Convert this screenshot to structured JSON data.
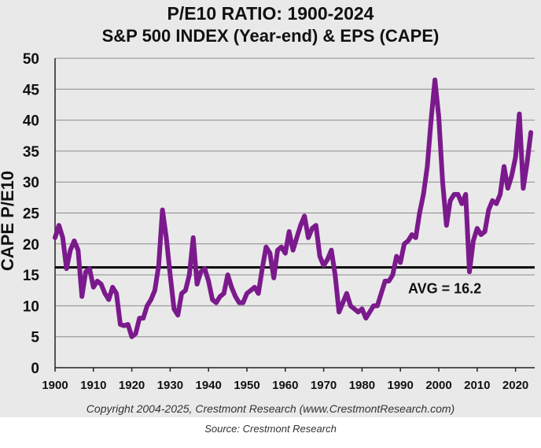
{
  "chart_data": {
    "type": "line",
    "title": "P/E10 RATIO: 1900-2024",
    "subtitle": "S&P 500 INDEX (Year-end) & EPS (CAPE)",
    "ylabel": "CAPE P/E10",
    "xlabel": "",
    "xlim": [
      1900,
      2025
    ],
    "ylim": [
      0,
      50
    ],
    "x_ticks": [
      "1900",
      "1910",
      "1920",
      "1930",
      "1940",
      "1950",
      "1960",
      "1970",
      "1980",
      "1990",
      "2000",
      "2010",
      "2020"
    ],
    "y_ticks": [
      "0",
      "5",
      "10",
      "15",
      "20",
      "25",
      "30",
      "35",
      "40",
      "45",
      "50"
    ],
    "grid": true,
    "series": [
      {
        "color": "#7b1a8c",
        "points": [
          [
            1900,
            21
          ],
          [
            1901,
            23
          ],
          [
            1902,
            21
          ],
          [
            1903,
            16
          ],
          [
            1904,
            19
          ],
          [
            1905,
            20.5
          ],
          [
            1906,
            19
          ],
          [
            1907,
            11.5
          ],
          [
            1908,
            15.5
          ],
          [
            1909,
            16
          ],
          [
            1910,
            13
          ],
          [
            1911,
            14
          ],
          [
            1912,
            13.5
          ],
          [
            1913,
            12
          ],
          [
            1914,
            11
          ],
          [
            1915,
            13
          ],
          [
            1916,
            12
          ],
          [
            1917,
            7
          ],
          [
            1918,
            6.8
          ],
          [
            1919,
            7
          ],
          [
            1920,
            5
          ],
          [
            1921,
            5.5
          ],
          [
            1922,
            8
          ],
          [
            1923,
            8
          ],
          [
            1924,
            10
          ],
          [
            1925,
            11
          ],
          [
            1926,
            12.5
          ],
          [
            1927,
            16.5
          ],
          [
            1928,
            25.5
          ],
          [
            1929,
            21
          ],
          [
            1930,
            15
          ],
          [
            1931,
            9.5
          ],
          [
            1932,
            8.5
          ],
          [
            1933,
            12
          ],
          [
            1934,
            12.5
          ],
          [
            1935,
            15
          ],
          [
            1936,
            21
          ],
          [
            1937,
            13.5
          ],
          [
            1938,
            15.5
          ],
          [
            1939,
            16
          ],
          [
            1940,
            14
          ],
          [
            1941,
            11
          ],
          [
            1942,
            10.5
          ],
          [
            1943,
            11.5
          ],
          [
            1944,
            12
          ],
          [
            1945,
            15
          ],
          [
            1946,
            13
          ],
          [
            1947,
            11.5
          ],
          [
            1948,
            10.5
          ],
          [
            1949,
            10.5
          ],
          [
            1950,
            12
          ],
          [
            1951,
            12.5
          ],
          [
            1952,
            13
          ],
          [
            1953,
            12
          ],
          [
            1954,
            16
          ],
          [
            1955,
            19.5
          ],
          [
            1956,
            18.5
          ],
          [
            1957,
            14.5
          ],
          [
            1958,
            19
          ],
          [
            1959,
            19.5
          ],
          [
            1960,
            18.5
          ],
          [
            1961,
            22
          ],
          [
            1962,
            19
          ],
          [
            1963,
            21
          ],
          [
            1964,
            23
          ],
          [
            1965,
            24.5
          ],
          [
            1966,
            21
          ],
          [
            1967,
            22.5
          ],
          [
            1968,
            23
          ],
          [
            1969,
            18
          ],
          [
            1970,
            16.5
          ],
          [
            1971,
            17.5
          ],
          [
            1972,
            19
          ],
          [
            1973,
            15
          ],
          [
            1974,
            9
          ],
          [
            1975,
            10.5
          ],
          [
            1976,
            12
          ],
          [
            1977,
            10
          ],
          [
            1978,
            9.5
          ],
          [
            1979,
            9
          ],
          [
            1980,
            9.5
          ],
          [
            1981,
            8
          ],
          [
            1982,
            9
          ],
          [
            1983,
            10
          ],
          [
            1984,
            10
          ],
          [
            1985,
            12
          ],
          [
            1986,
            14
          ],
          [
            1987,
            14
          ],
          [
            1988,
            15
          ],
          [
            1989,
            18
          ],
          [
            1990,
            17
          ],
          [
            1991,
            20
          ],
          [
            1992,
            20.5
          ],
          [
            1993,
            21.5
          ],
          [
            1994,
            21
          ],
          [
            1995,
            25
          ],
          [
            1996,
            28
          ],
          [
            1997,
            32.5
          ],
          [
            1998,
            40
          ],
          [
            1999,
            46.5
          ],
          [
            2000,
            40.5
          ],
          [
            2001,
            30
          ],
          [
            2002,
            23
          ],
          [
            2003,
            27
          ],
          [
            2004,
            28
          ],
          [
            2005,
            28
          ],
          [
            2006,
            26.5
          ],
          [
            2007,
            28
          ],
          [
            2008,
            15.5
          ],
          [
            2009,
            20.5
          ],
          [
            2010,
            22.5
          ],
          [
            2011,
            21.5
          ],
          [
            2012,
            22
          ],
          [
            2013,
            25.5
          ],
          [
            2014,
            27
          ],
          [
            2015,
            26.5
          ],
          [
            2016,
            28
          ],
          [
            2017,
            32.5
          ],
          [
            2018,
            29
          ],
          [
            2019,
            31
          ],
          [
            2020,
            34
          ],
          [
            2021,
            41
          ],
          [
            2022,
            29
          ],
          [
            2023,
            33
          ],
          [
            2024,
            38
          ]
        ]
      }
    ],
    "average": {
      "value": 16.2,
      "label": "AVG = 16.2"
    }
  },
  "copyright": "Copyright 2004-2025, Crestmont Research (www.CrestmontResearch.com)",
  "caption": "Source: Crestmont Research"
}
